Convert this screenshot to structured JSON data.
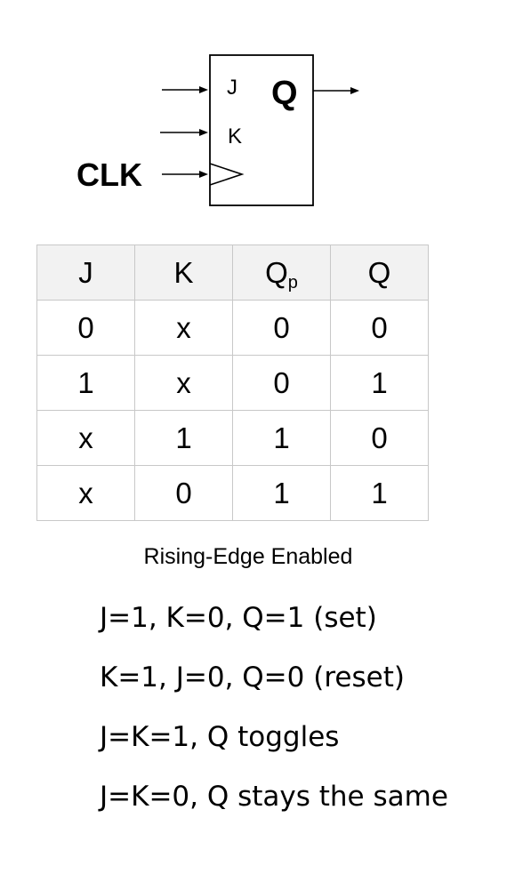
{
  "diagram": {
    "pins": {
      "j": "J",
      "k": "K",
      "q": "Q",
      "clk": "CLK"
    }
  },
  "table": {
    "headers": [
      {
        "main": "J",
        "sub": ""
      },
      {
        "main": "K",
        "sub": ""
      },
      {
        "main": "Q",
        "sub": "p"
      },
      {
        "main": "Q",
        "sub": ""
      }
    ],
    "rows": [
      [
        "0",
        "x",
        "0",
        "0"
      ],
      [
        "1",
        "x",
        "0",
        "1"
      ],
      [
        "x",
        "1",
        "1",
        "0"
      ],
      [
        "x",
        "0",
        "1",
        "1"
      ]
    ]
  },
  "caption": "Rising-Edge Enabled",
  "notes": [
    "J=1, K=0, Q=1 (set)",
    "K=1, J=0, Q=0 (reset)",
    "J=K=1, Q toggles",
    "J=K=0, Q stays the same"
  ]
}
